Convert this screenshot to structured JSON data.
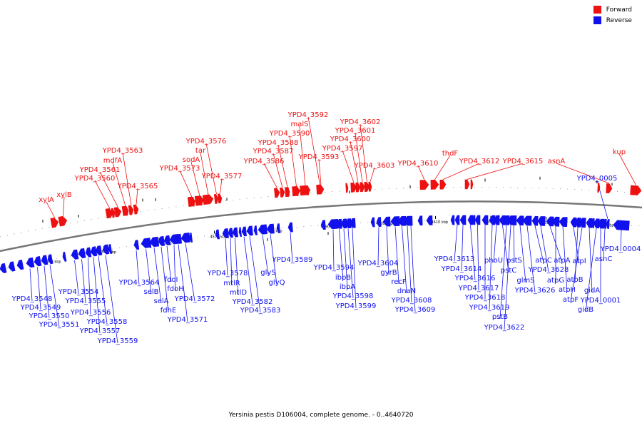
{
  "legend": [
    {
      "label": "Forward",
      "color": "#ee1111"
    },
    {
      "label": "Reverse",
      "color": "#1111ee"
    }
  ],
  "caption": "Yersinia pestis D106004, complete genome. - 0..4640720",
  "colors": {
    "forward": "#ee1111",
    "reverse": "#1111ee",
    "backbone": "#777777"
  },
  "scale": {
    "ticks": [
      {
        "label": "4540 kbp",
        "pos": 4540
      },
      {
        "label": "4550 kbp",
        "pos": 4550
      },
      {
        "label": "4560 kbp",
        "pos": 4560
      },
      {
        "label": "4570 kbp",
        "pos": 4570
      },
      {
        "label": "4580 kbp",
        "pos": 4580
      },
      {
        "label": "4590 kbp",
        "pos": 4590
      },
      {
        "label": "4600 kbp",
        "pos": 4600
      },
      {
        "label": "4610 kbp",
        "pos": 4610
      },
      {
        "label": "4620 kbp",
        "pos": 4620
      },
      {
        "label": "4630 kbp",
        "pos": 4630
      },
      {
        "label": "4640 kbp",
        "pos": 4640
      }
    ]
  },
  "forward_genes": [
    {
      "name": "xylA"
    },
    {
      "name": "xylB"
    },
    {
      "name": "YPD4_3560"
    },
    {
      "name": "YPD4_3561"
    },
    {
      "name": "mdfA"
    },
    {
      "name": "YPD4_3563"
    },
    {
      "name": "YPD4_3565"
    },
    {
      "name": "YPD4_3573"
    },
    {
      "name": "sodA"
    },
    {
      "name": "tar"
    },
    {
      "name": "YPD4_3576"
    },
    {
      "name": "YPD4_3577"
    },
    {
      "name": "YPD4_3586"
    },
    {
      "name": "YPD4_3587"
    },
    {
      "name": "YPD4_3588"
    },
    {
      "name": "YPD4_3590"
    },
    {
      "name": "malS"
    },
    {
      "name": "YPD4_3592"
    },
    {
      "name": "YPD4_3593"
    },
    {
      "name": "YPD4_3597"
    },
    {
      "name": "YPD4_3600"
    },
    {
      "name": "YPD4_3601"
    },
    {
      "name": "YPD4_3602"
    },
    {
      "name": "YPD4_3603"
    },
    {
      "name": "YPD4_3610"
    },
    {
      "name": "thdF"
    },
    {
      "name": "YPD4_3612"
    },
    {
      "name": "YPD4_3615"
    },
    {
      "name": "asnA"
    },
    {
      "name": "kup"
    }
  ],
  "reverse_genes": [
    {
      "name": "YPD4_3548"
    },
    {
      "name": "YPD4_3549"
    },
    {
      "name": "YPD4_3550"
    },
    {
      "name": "YPD4_3551"
    },
    {
      "name": "YPD4_3554"
    },
    {
      "name": "YPD4_3555"
    },
    {
      "name": "YPD4_3556"
    },
    {
      "name": "YPD4_3557"
    },
    {
      "name": "YPD4_3558"
    },
    {
      "name": "YPD4_3559"
    },
    {
      "name": "YPD4_3564"
    },
    {
      "name": "selB"
    },
    {
      "name": "selA"
    },
    {
      "name": "fdhE"
    },
    {
      "name": "fdoI"
    },
    {
      "name": "fdoH"
    },
    {
      "name": "YPD4_3571"
    },
    {
      "name": "YPD4_3572"
    },
    {
      "name": "YPD4_3578"
    },
    {
      "name": "mtlR"
    },
    {
      "name": "mtlD"
    },
    {
      "name": "YPD4_3582"
    },
    {
      "name": "YPD4_3583"
    },
    {
      "name": "glyS"
    },
    {
      "name": "glyQ"
    },
    {
      "name": "YPD4_3589"
    },
    {
      "name": "YPD4_3594"
    },
    {
      "name": "ibpB"
    },
    {
      "name": "ibpA"
    },
    {
      "name": "YPD4_3598"
    },
    {
      "name": "YPD4_3599"
    },
    {
      "name": "YPD4_3604"
    },
    {
      "name": "gyrB"
    },
    {
      "name": "recF"
    },
    {
      "name": "dnaN"
    },
    {
      "name": "YPD4_3608"
    },
    {
      "name": "YPD4_3609"
    },
    {
      "name": "YPD4_3613"
    },
    {
      "name": "YPD4_3614"
    },
    {
      "name": "YPD4_3616"
    },
    {
      "name": "YPD4_3617"
    },
    {
      "name": "YPD4_3618"
    },
    {
      "name": "YPD4_3619"
    },
    {
      "name": "phoU"
    },
    {
      "name": "pstC"
    },
    {
      "name": "pstB"
    },
    {
      "name": "YPD4_3622"
    },
    {
      "name": "pstS"
    },
    {
      "name": "glmS"
    },
    {
      "name": "YPD4_3626"
    },
    {
      "name": "atpC"
    },
    {
      "name": "YPD4_3628"
    },
    {
      "name": "atpA"
    },
    {
      "name": "atpG"
    },
    {
      "name": "atpH"
    },
    {
      "name": "atpI"
    },
    {
      "name": "atpB"
    },
    {
      "name": "atpF"
    },
    {
      "name": "gidA"
    },
    {
      "name": "gidB"
    },
    {
      "name": "YPD4_0001"
    },
    {
      "name": "asnC"
    },
    {
      "name": "YPD4_0004"
    },
    {
      "name": "YPD4_0005"
    }
  ]
}
